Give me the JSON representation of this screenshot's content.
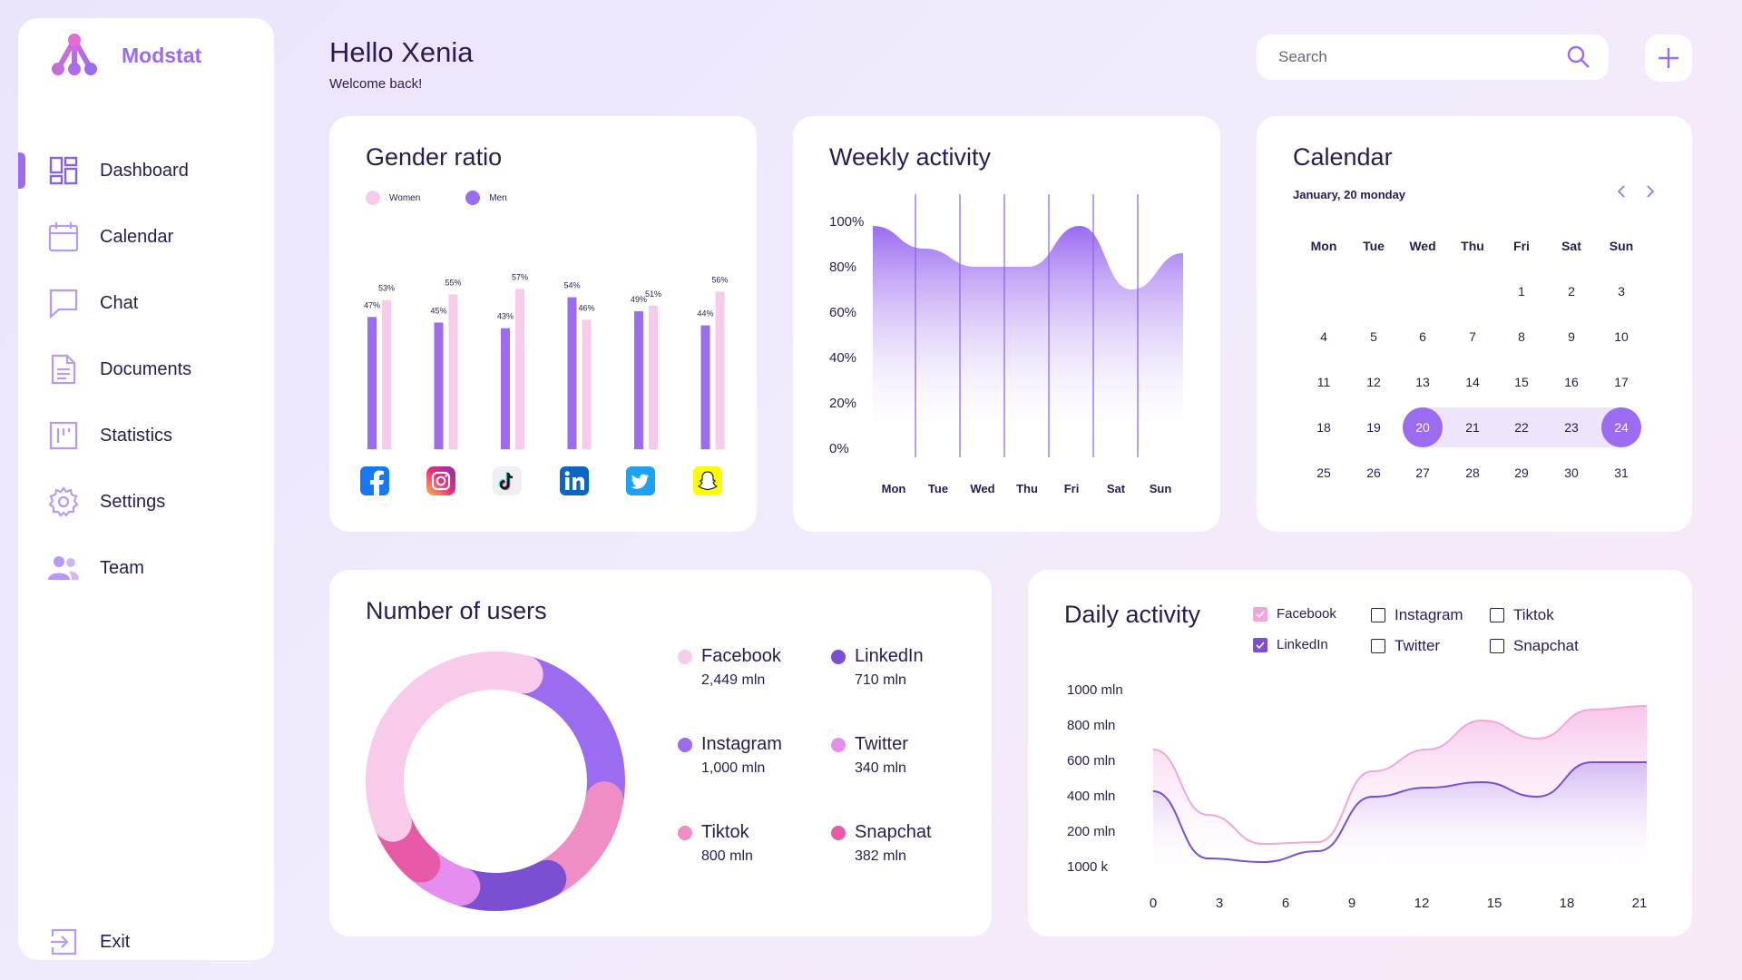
{
  "app": {
    "name": "Modstat"
  },
  "sidebar": {
    "items": [
      {
        "label": "Dashboard",
        "icon": "dashboard-icon",
        "active": true
      },
      {
        "label": "Calendar",
        "icon": "calendar-icon"
      },
      {
        "label": "Chat",
        "icon": "chat-icon"
      },
      {
        "label": "Documents",
        "icon": "document-icon"
      },
      {
        "label": "Statistics",
        "icon": "statistics-icon"
      },
      {
        "label": "Settings",
        "icon": "gear-icon"
      },
      {
        "label": "Team",
        "icon": "team-icon"
      }
    ],
    "exit_label": "Exit"
  },
  "header": {
    "title": "Hello Xenia",
    "subtitle": "Welcome back!"
  },
  "search": {
    "placeholder": "Search"
  },
  "colors": {
    "accent": "#9b6bf0",
    "pink": "#f9cbea",
    "text": "#2b1b4f"
  },
  "gender": {
    "title": "Gender ratio",
    "legend": {
      "women": "Women",
      "men": "Men"
    },
    "chart_data": {
      "type": "bar",
      "categories": [
        "Facebook",
        "Instagram",
        "Tiktok",
        "LinkedIn",
        "Twitter",
        "Snapchat"
      ],
      "series": [
        {
          "name": "Men",
          "values": [
            47,
            45,
            43,
            54,
            49,
            44
          ]
        },
        {
          "name": "Women",
          "values": [
            53,
            55,
            57,
            46,
            51,
            56
          ]
        }
      ],
      "labels_men": [
        "47%",
        "45%",
        "43%",
        "54%",
        "49%",
        "44%"
      ],
      "labels_women": [
        "53%",
        "55%",
        "57%",
        "46%",
        "51%",
        "56%"
      ]
    }
  },
  "weekly": {
    "title": "Weekly activity",
    "chart_data": {
      "type": "area",
      "y_ticks": [
        "100%",
        "80%",
        "60%",
        "40%",
        "20%",
        "0%"
      ],
      "categories": [
        "Mon",
        "Tue",
        "Wed",
        "Thu",
        "Fri",
        "Sat",
        "Sun"
      ],
      "values": [
        98,
        88,
        80,
        80,
        98,
        70,
        86
      ],
      "ylim": [
        0,
        100
      ]
    }
  },
  "calendar": {
    "title": "Calendar",
    "date_label": "January, 20 monday",
    "weekdays": [
      "Mon",
      "Tue",
      "Wed",
      "Thu",
      "Fri",
      "Sat",
      "Sun"
    ],
    "days": [
      "1",
      "2",
      "3",
      "4",
      "5",
      "6",
      "7",
      "8",
      "9",
      "10",
      "11",
      "12",
      "13",
      "14",
      "15",
      "16",
      "17",
      "18",
      "19",
      "20",
      "21",
      "22",
      "23",
      "24",
      "25",
      "26",
      "27",
      "28",
      "29",
      "30",
      "31"
    ],
    "range_start": "20",
    "range_end": "24"
  },
  "users": {
    "title": "Number of users",
    "items": [
      {
        "name": "Facebook",
        "value": "2,449 mln",
        "color": "#f9cbea"
      },
      {
        "name": "LinkedIn",
        "value": "710 mln",
        "color": "#7b4fd2"
      },
      {
        "name": "Instagram",
        "value": "1,000 mln",
        "color": "#9b6bf0"
      },
      {
        "name": "Twitter",
        "value": "340 mln",
        "color": "#e58ef0"
      },
      {
        "name": "Tiktok",
        "value": "800 mln",
        "color": "#ef8ec5"
      },
      {
        "name": "Snapchat",
        "value": "382 mln",
        "color": "#e65aa8"
      }
    ]
  },
  "daily": {
    "title": "Daily activity",
    "checks": [
      {
        "label": "Facebook",
        "checked": true,
        "color": "#f1a7d9"
      },
      {
        "label": "Instagram",
        "checked": false
      },
      {
        "label": "Tiktok",
        "checked": false
      },
      {
        "label": "LinkedIn",
        "checked": true,
        "color": "#7b4fd2"
      },
      {
        "label": "Twitter",
        "checked": false
      },
      {
        "label": "Snapchat",
        "checked": false
      }
    ],
    "chart_data": {
      "type": "area",
      "y_ticks": [
        "1000 mln",
        "800 mln",
        "600 mln",
        "400 mln",
        "200 mln",
        "1000 k"
      ],
      "x_ticks": [
        "0",
        "3",
        "6",
        "9",
        "12",
        "15",
        "18",
        "21"
      ],
      "series": [
        {
          "name": "Facebook",
          "values": [
            660,
            300,
            140,
            150,
            540,
            660,
            820,
            720,
            880,
            900
          ]
        },
        {
          "name": "LinkedIn",
          "values": [
            430,
            60,
            40,
            100,
            400,
            450,
            480,
            400,
            590,
            590
          ]
        }
      ]
    }
  }
}
